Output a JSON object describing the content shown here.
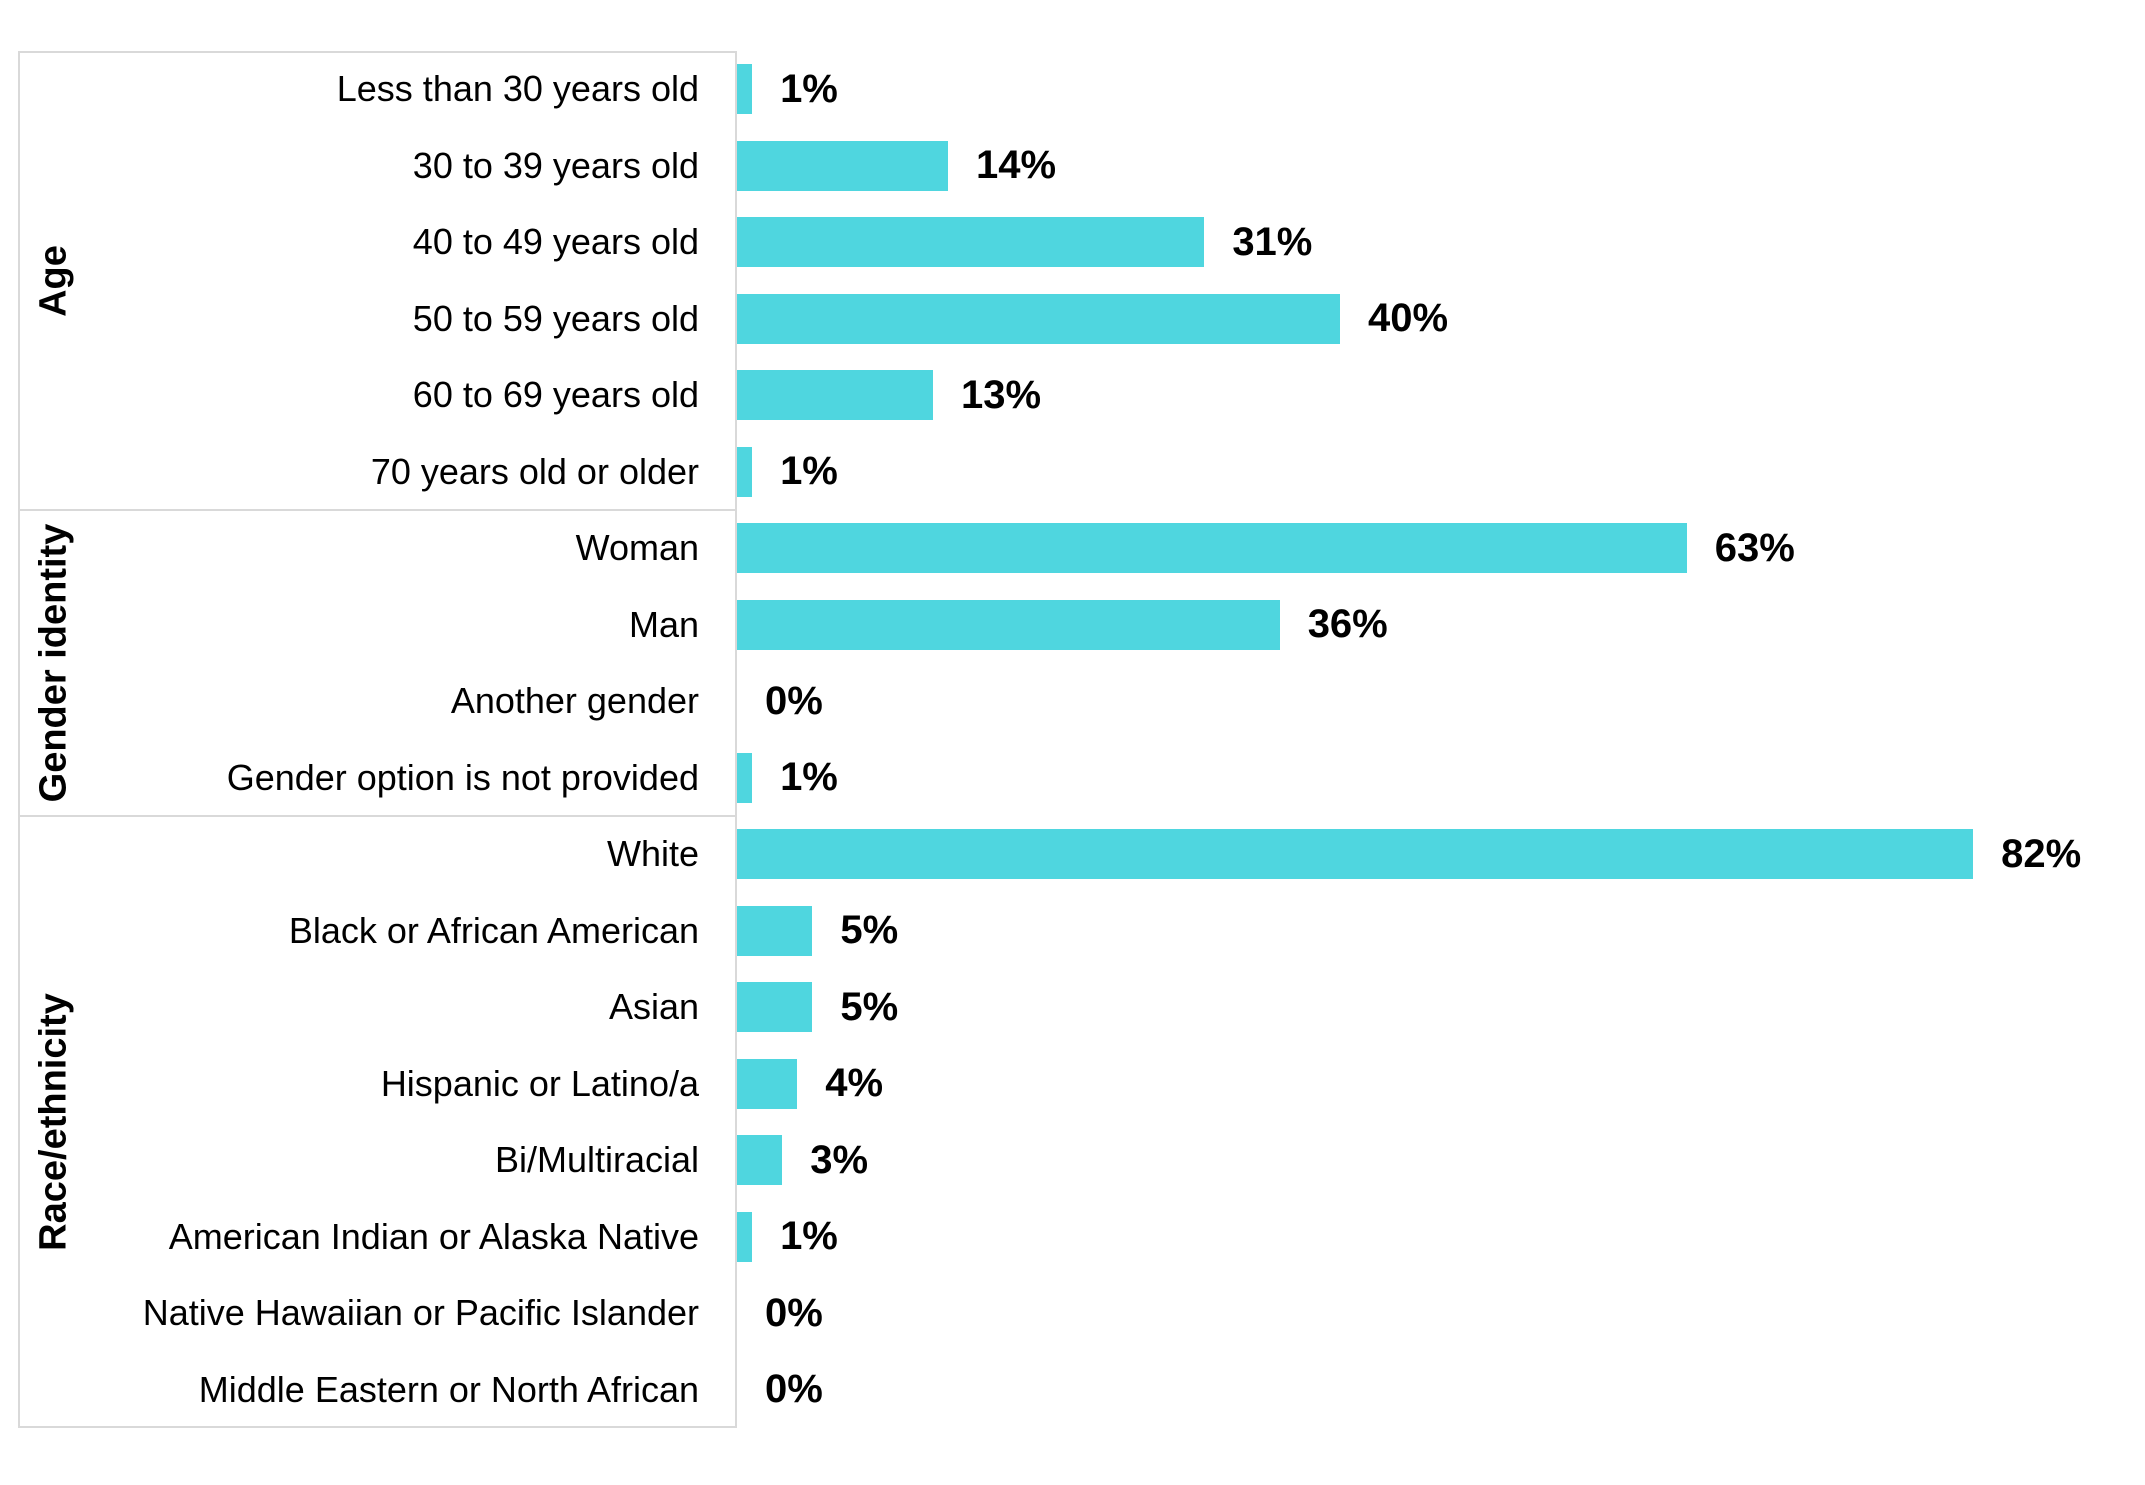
{
  "chart_data": {
    "type": "bar",
    "orientation": "horizontal",
    "title": "",
    "xlabel": "",
    "ylabel": "",
    "xlim": [
      0,
      93
    ],
    "grid": false,
    "legend": false,
    "value_suffix": "%",
    "bar_color": "#4FD6DF",
    "frame_color": "#D9D9D9",
    "text_color": "#000000",
    "groups": [
      {
        "label": "Age",
        "rows": [
          {
            "label": "Less than 30 years old",
            "value": 1,
            "display": "1%"
          },
          {
            "label": "30 to 39 years old",
            "value": 14,
            "display": "14%"
          },
          {
            "label": "40 to 49 years old",
            "value": 31,
            "display": "31%"
          },
          {
            "label": "50 to 59 years old",
            "value": 40,
            "display": "40%"
          },
          {
            "label": "60 to 69 years old",
            "value": 13,
            "display": "13%"
          },
          {
            "label": "70 years old or older",
            "value": 1,
            "display": "1%"
          }
        ]
      },
      {
        "label": "Gender identity",
        "rows": [
          {
            "label": "Woman",
            "value": 63,
            "display": "63%"
          },
          {
            "label": "Man",
            "value": 36,
            "display": "36%"
          },
          {
            "label": "Another gender",
            "value": 0,
            "display": "0%"
          },
          {
            "label": "Gender option is not provided",
            "value": 1,
            "display": "1%"
          }
        ]
      },
      {
        "label": "Race/ethnicity",
        "rows": [
          {
            "label": "White",
            "value": 82,
            "display": "82%"
          },
          {
            "label": "Black or African American",
            "value": 5,
            "display": "5%"
          },
          {
            "label": "Asian",
            "value": 5,
            "display": "5%"
          },
          {
            "label": "Hispanic or Latino/a",
            "value": 4,
            "display": "4%"
          },
          {
            "label": "Bi/Multiracial",
            "value": 3,
            "display": "3%"
          },
          {
            "label": "American Indian or Alaska Native",
            "value": 1,
            "display": "1%"
          },
          {
            "label": "Native Hawaiian or Pacific Islander",
            "value": 0,
            "display": "0%"
          },
          {
            "label": "Middle Eastern or North African",
            "value": 0,
            "display": "0%"
          }
        ]
      }
    ]
  }
}
